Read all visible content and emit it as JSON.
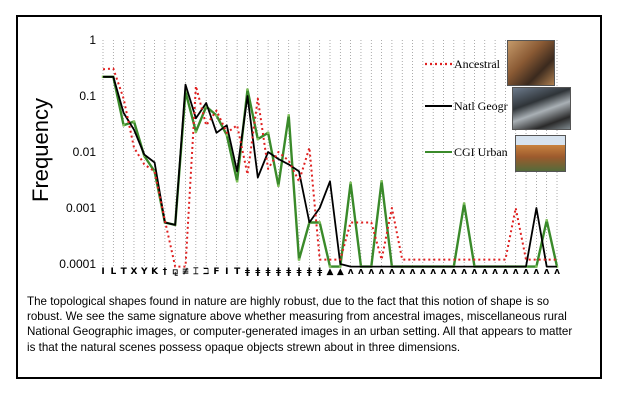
{
  "caption": "The topological shapes found in nature are highly robust, due to the fact that this notion of shape is so robust. We see the same signature above whether measuring from ancestral images, miscellaneous rural National Geographic images, or computer-generated images in an urban setting. All that appears to matter is that the natural scenes possess opaque objects strewn about in three dimensions.",
  "chart_data": {
    "type": "line",
    "ylabel": "Frequency",
    "yscale": "log",
    "ylim": [
      0.0001,
      1
    ],
    "yticks": [
      "1",
      "0.1",
      "0.01",
      "0.001",
      "0.0001"
    ],
    "grid": "vertical dotted",
    "legend_position": "top-right",
    "categories": [
      "I",
      "L",
      "T",
      "X",
      "Y",
      "K",
      "†",
      "⚼",
      "≢",
      "⌶",
      "ℶ",
      "F",
      "I",
      "T",
      "ǂ",
      "ǂ",
      "ǂ",
      "ǂ",
      "ǂ",
      "ǂ",
      "ǂ",
      "ǂ",
      "▲",
      "▲",
      "ʌ",
      "ʌ",
      "ʌ",
      "ʌ",
      "ʌ",
      "ʌ",
      "ʌ",
      "ʌ",
      "ʌ",
      "ʌ",
      "ʌ",
      "ʌ",
      "ʌ",
      "ʌ",
      "ʌ",
      "ʌ",
      "ʌ",
      "ʌ",
      "ʌ",
      "ʌ",
      "ʌ"
    ],
    "series": [
      {
        "name": "Ancestral",
        "color": "#e02020",
        "style": "dotted",
        "values": [
          0.3,
          0.31,
          0.09,
          0.012,
          0.006,
          0.0045,
          0.0006,
          9e-05,
          9e-05,
          0.15,
          0.03,
          0.055,
          0.022,
          0.03,
          0.004,
          0.09,
          0.005,
          0.01,
          0.007,
          0.003,
          0.012,
          0.00012,
          0.00012,
          0.00012,
          0.00055,
          0.00055,
          0.00055,
          0.00012,
          0.001,
          0.00012,
          0.00012,
          0.00012,
          0.00012,
          0.00012,
          0.00012,
          0.00012,
          0.00012,
          0.00012,
          0.00012,
          0.00012,
          0.001,
          0.00012,
          0.00012,
          0.00012,
          0.00012
        ]
      },
      {
        "name": "Natl Geogr",
        "color": "#000000",
        "style": "solid",
        "values": [
          0.22,
          0.22,
          0.05,
          0.025,
          0.009,
          0.0065,
          0.00055,
          0.0005,
          0.16,
          0.04,
          0.075,
          0.022,
          0.03,
          0.0045,
          0.1,
          0.0035,
          0.01,
          0.0075,
          0.006,
          0.0045,
          0.00055,
          0.001,
          0.003,
          0.0001,
          9e-05,
          9e-05,
          9e-05,
          9e-05,
          9e-05,
          9e-05,
          9e-05,
          9e-05,
          9e-05,
          9e-05,
          9e-05,
          9e-05,
          9e-05,
          9e-05,
          9e-05,
          9e-05,
          9e-05,
          9e-05,
          0.001,
          9e-05,
          9e-05
        ]
      },
      {
        "name": "CGI Urban",
        "color": "#3a8a2a",
        "style": "solid",
        "values": [
          0.22,
          0.22,
          0.03,
          0.035,
          0.0085,
          0.0045,
          0.00055,
          0.0005,
          0.12,
          0.023,
          0.065,
          0.045,
          0.02,
          0.003,
          0.13,
          0.017,
          0.022,
          0.0025,
          0.045,
          0.00012,
          0.00055,
          0.00055,
          9e-05,
          9e-05,
          0.0028,
          9e-05,
          9e-05,
          0.003,
          9e-05,
          9e-05,
          9e-05,
          9e-05,
          9e-05,
          9e-05,
          9e-05,
          0.0012,
          9e-05,
          9e-05,
          9e-05,
          9e-05,
          9e-05,
          9e-05,
          9e-05,
          0.0006,
          9e-05
        ]
      }
    ]
  }
}
